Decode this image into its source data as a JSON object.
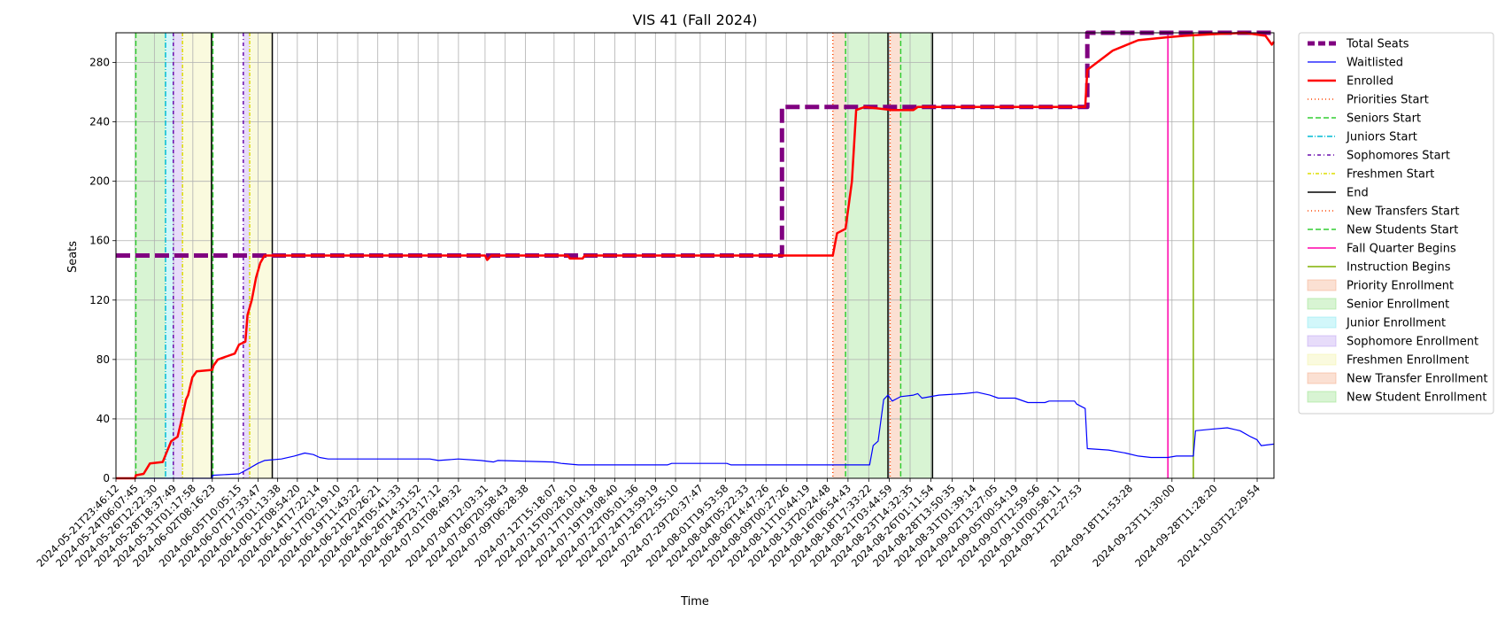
{
  "chart_data": {
    "type": "line",
    "title": "VIS 41 (Fall 2024)",
    "xlabel": "Time",
    "ylabel": "Seats",
    "ylim": [
      0,
      300
    ],
    "xlim": [
      "2024-05-21T23:46:12",
      "2024-10-05T12:00:00"
    ],
    "grid": true,
    "legend_placement": "outside-right",
    "yticks": [
      0,
      40,
      80,
      120,
      160,
      200,
      240,
      280
    ],
    "xticks": [
      "2024-05-21T23:46:12",
      "2024-05-24T06:07:45",
      "2024-05-26T12:22:30",
      "2024-05-28T18:37:49",
      "2024-05-31T01:17:58",
      "2024-06-02T08:16:23",
      "2024-06-05T10:05:15",
      "2024-06-07T17:33:47",
      "2024-06-10T01:13:38",
      "2024-06-12T08:54:20",
      "2024-06-14T17:22:14",
      "2024-06-17T02:19:10",
      "2024-06-19T11:43:22",
      "2024-06-21T20:26:21",
      "2024-06-24T05:41:33",
      "2024-06-26T14:31:52",
      "2024-06-28T23:17:12",
      "2024-07-01T08:49:32",
      "2024-07-04T12:03:31",
      "2024-07-06T20:58:43",
      "2024-07-09T06:28:38",
      "2024-07-12T15:18:07",
      "2024-07-15T00:28:10",
      "2024-07-17T10:04:18",
      "2024-07-19T19:08:40",
      "2024-07-22T05:01:36",
      "2024-07-24T13:59:19",
      "2024-07-26T22:55:10",
      "2024-07-29T20:37:47",
      "2024-08-01T19:53:58",
      "2024-08-04T05:22:33",
      "2024-08-06T14:47:26",
      "2024-08-09T00:27:26",
      "2024-08-11T10:44:19",
      "2024-08-13T20:24:48",
      "2024-08-16T06:54:43",
      "2024-08-18T17:33:22",
      "2024-08-21T03:44:59",
      "2024-08-23T14:32:35",
      "2024-08-26T01:11:54",
      "2024-08-28T13:50:35",
      "2024-08-31T01:39:14",
      "2024-09-02T13:27:05",
      "2024-09-05T00:54:19",
      "2024-09-07T12:59:56",
      "2024-09-10T00:58:11",
      "2024-09-12T12:27:53",
      "2024-09-18T11:53:28",
      "2024-09-23T11:30:00",
      "2024-09-28T11:28:20",
      "2024-10-03T12:29:54"
    ],
    "series": [
      {
        "name": "Total Seats",
        "color": "#800080",
        "style": "dashed-thick",
        "points": [
          [
            "2024-05-21T23:46:12",
            150
          ],
          [
            "2024-08-08T12:00:00",
            150
          ],
          [
            "2024-08-08T12:00:00",
            250
          ],
          [
            "2024-09-13T12:00:00",
            250
          ],
          [
            "2024-09-13T12:00:00",
            300
          ],
          [
            "2024-10-05T12:00:00",
            300
          ]
        ]
      },
      {
        "name": "Waitlisted",
        "color": "#0000ff",
        "style": "solid-thin",
        "points": [
          [
            "2024-05-21T23:46:12",
            0
          ],
          [
            "2024-06-02T08:30:00",
            0
          ],
          [
            "2024-06-02T09:00:00",
            2
          ],
          [
            "2024-06-05T12:00:00",
            3
          ],
          [
            "2024-06-06T12:00:00",
            6
          ],
          [
            "2024-06-07T17:00:00",
            10
          ],
          [
            "2024-06-08T12:00:00",
            12
          ],
          [
            "2024-06-10T12:00:00",
            13
          ],
          [
            "2024-06-12T00:00:00",
            15
          ],
          [
            "2024-06-13T06:00:00",
            17
          ],
          [
            "2024-06-14T06:00:00",
            16
          ],
          [
            "2024-06-15T00:00:00",
            14
          ],
          [
            "2024-06-16T00:00:00",
            13
          ],
          [
            "2024-06-28T00:00:00",
            13
          ],
          [
            "2024-06-29T00:00:00",
            12
          ],
          [
            "2024-07-01T08:00:00",
            13
          ],
          [
            "2024-07-04T00:00:00",
            12
          ],
          [
            "2024-07-05T12:00:00",
            11
          ],
          [
            "2024-07-06T00:00:00",
            12
          ],
          [
            "2024-07-12T12:00:00",
            11
          ],
          [
            "2024-07-13T12:00:00",
            10
          ],
          [
            "2024-07-15T12:00:00",
            9
          ],
          [
            "2024-07-26T00:00:00",
            9
          ],
          [
            "2024-07-26T12:00:00",
            10
          ],
          [
            "2024-08-02T00:00:00",
            10
          ],
          [
            "2024-08-02T12:00:00",
            9
          ],
          [
            "2024-08-18T20:00:00",
            9
          ],
          [
            "2024-08-19T06:00:00",
            22
          ],
          [
            "2024-08-19T20:00:00",
            25
          ],
          [
            "2024-08-20T12:00:00",
            53
          ],
          [
            "2024-08-21T00:00:00",
            56
          ],
          [
            "2024-08-21T12:00:00",
            52
          ],
          [
            "2024-08-22T12:00:00",
            55
          ],
          [
            "2024-08-24T00:00:00",
            56
          ],
          [
            "2024-08-24T12:00:00",
            57
          ],
          [
            "2024-08-25T00:00:00",
            54
          ],
          [
            "2024-08-27T00:00:00",
            56
          ],
          [
            "2024-08-30T00:00:00",
            57
          ],
          [
            "2024-08-31T12:00:00",
            58
          ],
          [
            "2024-09-02T00:00:00",
            56
          ],
          [
            "2024-09-03T00:00:00",
            54
          ],
          [
            "2024-09-05T00:00:00",
            54
          ],
          [
            "2024-09-06T12:00:00",
            51
          ],
          [
            "2024-09-08T12:00:00",
            51
          ],
          [
            "2024-09-09T00:00:00",
            52
          ],
          [
            "2024-09-12T00:00:00",
            52
          ],
          [
            "2024-09-12T06:00:00",
            50
          ],
          [
            "2024-09-13T06:00:00",
            47
          ],
          [
            "2024-09-13T12:00:00",
            20
          ],
          [
            "2024-09-16T00:00:00",
            19
          ],
          [
            "2024-09-18T00:00:00",
            17
          ],
          [
            "2024-09-19T12:00:00",
            15
          ],
          [
            "2024-09-21T00:00:00",
            14
          ],
          [
            "2024-09-23T00:00:00",
            14
          ],
          [
            "2024-09-24T00:00:00",
            15
          ],
          [
            "2024-09-26T00:00:00",
            15
          ],
          [
            "2024-09-26T06:00:00",
            32
          ],
          [
            "2024-09-28T00:00:00",
            33
          ],
          [
            "2024-09-30T00:00:00",
            34
          ],
          [
            "2024-10-01T12:00:00",
            32
          ],
          [
            "2024-10-02T18:00:00",
            28
          ],
          [
            "2024-10-03T12:00:00",
            26
          ],
          [
            "2024-10-04T00:00:00",
            22
          ],
          [
            "2024-10-05T12:00:00",
            23
          ]
        ]
      },
      {
        "name": "Enrolled",
        "color": "#ff0000",
        "style": "solid-thick",
        "points": [
          [
            "2024-05-21T23:46:12",
            0
          ],
          [
            "2024-05-24T06:00:00",
            0
          ],
          [
            "2024-05-24T08:00:00",
            2
          ],
          [
            "2024-05-25T06:00:00",
            3
          ],
          [
            "2024-05-26T00:00:00",
            10
          ],
          [
            "2024-05-27T12:00:00",
            11
          ],
          [
            "2024-05-28T00:00:00",
            18
          ],
          [
            "2024-05-28T12:00:00",
            25
          ],
          [
            "2024-05-29T06:00:00",
            28
          ],
          [
            "2024-05-29T18:00:00",
            40
          ],
          [
            "2024-05-30T06:00:00",
            53
          ],
          [
            "2024-05-30T12:00:00",
            56
          ],
          [
            "2024-05-31T00:00:00",
            68
          ],
          [
            "2024-05-31T12:00:00",
            72
          ],
          [
            "2024-06-02T08:00:00",
            73
          ],
          [
            "2024-06-02T12:00:00",
            76
          ],
          [
            "2024-06-03T00:00:00",
            80
          ],
          [
            "2024-06-04T00:00:00",
            82
          ],
          [
            "2024-06-05T00:00:00",
            84
          ],
          [
            "2024-06-05T12:00:00",
            90
          ],
          [
            "2024-06-06T06:00:00",
            92
          ],
          [
            "2024-06-06T12:00:00",
            110
          ],
          [
            "2024-06-07T00:00:00",
            120
          ],
          [
            "2024-06-07T12:00:00",
            135
          ],
          [
            "2024-06-08T00:00:00",
            145
          ],
          [
            "2024-06-08T12:00:00",
            150
          ],
          [
            "2024-07-04T12:00:00",
            150
          ],
          [
            "2024-07-04T18:00:00",
            147
          ],
          [
            "2024-07-05T06:00:00",
            150
          ],
          [
            "2024-07-14T06:00:00",
            150
          ],
          [
            "2024-07-14T12:00:00",
            148
          ],
          [
            "2024-07-16T00:00:00",
            148
          ],
          [
            "2024-07-16T06:00:00",
            150
          ],
          [
            "2024-08-14T12:00:00",
            150
          ],
          [
            "2024-08-15T00:00:00",
            165
          ],
          [
            "2024-08-16T00:00:00",
            168
          ],
          [
            "2024-08-16T18:00:00",
            200
          ],
          [
            "2024-08-17T06:00:00",
            248
          ],
          [
            "2024-08-18T06:00:00",
            250
          ],
          [
            "2024-08-21T12:00:00",
            248
          ],
          [
            "2024-08-24T00:00:00",
            248
          ],
          [
            "2024-08-24T12:00:00",
            250
          ],
          [
            "2024-09-13T06:00:00",
            250
          ],
          [
            "2024-09-13T12:00:00",
            275
          ],
          [
            "2024-09-16T12:00:00",
            288
          ],
          [
            "2024-09-19T12:00:00",
            295
          ],
          [
            "2024-09-23T00:00:00",
            297
          ],
          [
            "2024-09-25T00:00:00",
            298
          ],
          [
            "2024-09-28T00:00:00",
            299
          ],
          [
            "2024-10-02T00:00:00",
            300
          ],
          [
            "2024-10-04T12:00:00",
            298
          ],
          [
            "2024-10-05T06:00:00",
            292
          ],
          [
            "2024-10-05T12:00:00",
            294
          ]
        ]
      }
    ],
    "vlines": [
      {
        "name": "Priorities Start",
        "color": "#ff4500",
        "dash": "1,3",
        "x": [
          "2024-08-14T12:00:00"
        ]
      },
      {
        "name": "Seniors Start",
        "color": "#32cd32",
        "dash": "6,3",
        "x": [
          "2024-05-24T08:00:00",
          "2024-06-02T10:00:00",
          "2024-08-16T00:00:00"
        ]
      },
      {
        "name": "Juniors Start",
        "color": "#00bcd4",
        "dash": "6,2,1,2",
        "x": [
          "2024-05-27T20:00:00"
        ]
      },
      {
        "name": "Sophomores Start",
        "color": "#6a0dad",
        "dash": "4,3,1,3",
        "x": [
          "2024-05-28T18:00:00",
          "2024-06-06T00:00:00"
        ]
      },
      {
        "name": "Freshmen Start",
        "color": "#dddd00",
        "dash": "4,2,1,2",
        "x": [
          "2024-05-29T20:00:00",
          "2024-06-06T18:00:00"
        ]
      },
      {
        "name": "End",
        "color": "#000000",
        "dash": "",
        "x": [
          "2024-06-02T06:00:00",
          "2024-06-09T10:00:00",
          "2024-08-21T00:00:00",
          "2024-08-26T06:00:00"
        ]
      },
      {
        "name": "New Transfers Start",
        "color": "#ff4500",
        "dash": "1,3",
        "x": [
          "2024-08-21T06:00:00"
        ]
      },
      {
        "name": "New Students Start",
        "color": "#32cd32",
        "dash": "6,3",
        "x": [
          "2024-08-22T12:00:00"
        ]
      },
      {
        "name": "Fall Quarter Begins",
        "color": "#ff00aa",
        "dash": "",
        "x": [
          "2024-09-23T00:00:00"
        ]
      },
      {
        "name": "Instruction Begins",
        "color": "#80b000",
        "dash": "",
        "x": [
          "2024-09-26T00:00:00"
        ]
      }
    ],
    "spans": [
      {
        "name": "Priority Enrollment",
        "color": "#f4a582",
        "from": "2024-08-14T12:00:00",
        "to": "2024-08-16T00:00:00"
      },
      {
        "name": "Senior Enrollment",
        "color": "#90e080",
        "from": "2024-05-24T08:00:00",
        "to": "2024-05-27T20:00:00"
      },
      {
        "name": "Senior Enrollment",
        "color": "#90e080",
        "from": "2024-08-16T00:00:00",
        "to": "2024-08-21T00:00:00"
      },
      {
        "name": "Junior Enrollment",
        "color": "#7fe8f0",
        "from": "2024-05-27T20:00:00",
        "to": "2024-05-28T18:00:00"
      },
      {
        "name": "Sophomore Enrollment",
        "color": "#b99cf0",
        "from": "2024-05-28T18:00:00",
        "to": "2024-05-29T20:00:00"
      },
      {
        "name": "Sophomore Enrollment",
        "color": "#b99cf0",
        "from": "2024-06-06T00:00:00",
        "to": "2024-06-06T18:00:00"
      },
      {
        "name": "Freshmen Enrollment",
        "color": "#f2f2a0",
        "from": "2024-05-29T20:00:00",
        "to": "2024-06-02T06:00:00"
      },
      {
        "name": "Freshmen Enrollment",
        "color": "#f2f2a0",
        "from": "2024-06-06T18:00:00",
        "to": "2024-06-09T10:00:00"
      },
      {
        "name": "New Transfer Enrollment",
        "color": "#f4a582",
        "from": "2024-08-21T06:00:00",
        "to": "2024-08-22T12:00:00"
      },
      {
        "name": "New Student Enrollment",
        "color": "#90e080",
        "from": "2024-08-22T12:00:00",
        "to": "2024-08-26T06:00:00"
      }
    ],
    "legend": [
      {
        "label": "Total Seats",
        "kind": "line",
        "color": "#800080",
        "dash": "8,4",
        "width": 5
      },
      {
        "label": "Waitlisted",
        "kind": "line",
        "color": "#0000ff",
        "dash": "",
        "width": 1.2
      },
      {
        "label": "Enrolled",
        "kind": "line",
        "color": "#ff0000",
        "dash": "",
        "width": 2.5
      },
      {
        "label": "Priorities Start",
        "kind": "line",
        "color": "#ff4500",
        "dash": "1,3",
        "width": 1.5
      },
      {
        "label": "Seniors Start",
        "kind": "line",
        "color": "#32cd32",
        "dash": "6,3",
        "width": 1.5
      },
      {
        "label": "Juniors Start",
        "kind": "line",
        "color": "#00bcd4",
        "dash": "6,2,1,2",
        "width": 1.5
      },
      {
        "label": "Sophomores Start",
        "kind": "line",
        "color": "#6a0dad",
        "dash": "4,3,1,3",
        "width": 1.5
      },
      {
        "label": "Freshmen Start",
        "kind": "line",
        "color": "#dddd00",
        "dash": "4,2,1,2",
        "width": 1.5
      },
      {
        "label": "End",
        "kind": "line",
        "color": "#000000",
        "dash": "",
        "width": 1.5
      },
      {
        "label": "New Transfers Start",
        "kind": "line",
        "color": "#ff4500",
        "dash": "1,3",
        "width": 1.5
      },
      {
        "label": "New Students Start",
        "kind": "line",
        "color": "#32cd32",
        "dash": "6,3",
        "width": 1.5
      },
      {
        "label": "Fall Quarter Begins",
        "kind": "line",
        "color": "#ff00aa",
        "dash": "",
        "width": 1.5
      },
      {
        "label": "Instruction Begins",
        "kind": "line",
        "color": "#80b000",
        "dash": "",
        "width": 1.5
      },
      {
        "label": "Priority Enrollment",
        "kind": "patch",
        "color": "#f4a582"
      },
      {
        "label": "Senior Enrollment",
        "kind": "patch",
        "color": "#90e080"
      },
      {
        "label": "Junior Enrollment",
        "kind": "patch",
        "color": "#7fe8f0"
      },
      {
        "label": "Sophomore Enrollment",
        "kind": "patch",
        "color": "#b99cf0"
      },
      {
        "label": "Freshmen Enrollment",
        "kind": "patch",
        "color": "#f2f2a0"
      },
      {
        "label": "New Transfer Enrollment",
        "kind": "patch",
        "color": "#f4a582"
      },
      {
        "label": "New Student Enrollment",
        "kind": "patch",
        "color": "#90e080"
      }
    ]
  }
}
